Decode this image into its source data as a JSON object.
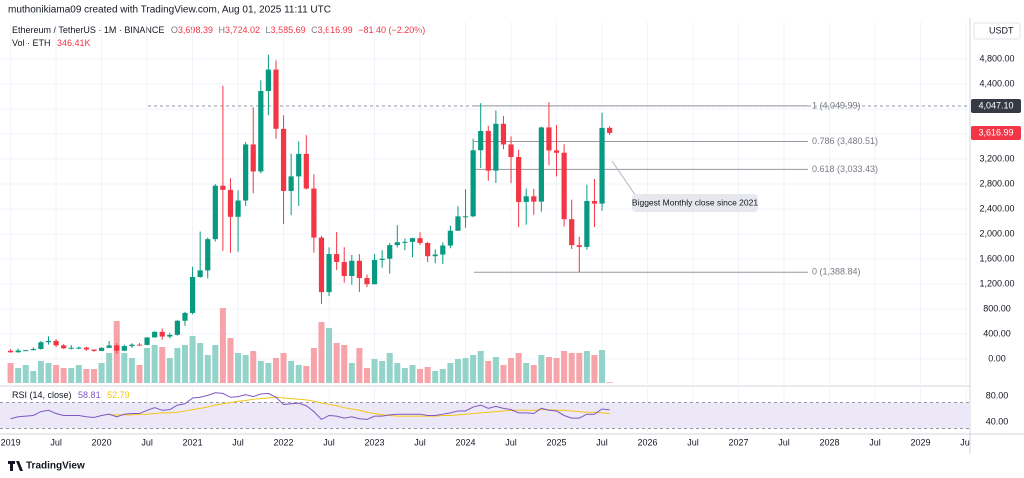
{
  "header": {
    "author_line": "muthonikiama09 created with TradingView.com, Aug 01, 2025 11:11 UTC",
    "symbol": "Ethereum / TetherUS · 1M · BINANCE",
    "ohlc_letters": [
      "O",
      "H",
      "L",
      "C"
    ],
    "ohlc_values": [
      "3,698.39",
      "3,724.02",
      "3,585.69",
      "3,616.99"
    ],
    "change": "−81.40 (−2.20%)",
    "volume_title": "Vol · ETH",
    "volume_value": "346.41K",
    "currency": "USDT",
    "brand": "TradingView"
  },
  "chart_data": {
    "type": "candlestick",
    "up_color": "#089981",
    "down_color": "#f23645",
    "volume_up_color": "#93d3ca",
    "volume_down_color": "#f6a3a9",
    "candles": {
      "x": [
        "2019-01",
        "2019-02",
        "2019-03",
        "2019-04",
        "2019-05",
        "2019-06",
        "2019-07",
        "2019-08",
        "2019-09",
        "2019-10",
        "2019-11",
        "2019-12",
        "2020-01",
        "2020-02",
        "2020-03",
        "2020-04",
        "2020-05",
        "2020-06",
        "2020-07",
        "2020-08",
        "2020-09",
        "2020-10",
        "2020-11",
        "2020-12",
        "2021-01",
        "2021-02",
        "2021-03",
        "2021-04",
        "2021-05",
        "2021-06",
        "2021-07",
        "2021-08",
        "2021-09",
        "2021-10",
        "2021-11",
        "2021-12",
        "2022-01",
        "2022-02",
        "2022-03",
        "2022-04",
        "2022-05",
        "2022-06",
        "2022-07",
        "2022-08",
        "2022-09",
        "2022-10",
        "2022-11",
        "2022-12",
        "2023-01",
        "2023-02",
        "2023-03",
        "2023-04",
        "2023-05",
        "2023-06",
        "2023-07",
        "2023-08",
        "2023-09",
        "2023-10",
        "2023-11",
        "2023-12",
        "2024-01",
        "2024-02",
        "2024-03",
        "2024-04",
        "2024-05",
        "2024-06",
        "2024-07",
        "2024-08",
        "2024-09",
        "2024-10",
        "2024-11",
        "2024-12",
        "2025-01",
        "2025-02",
        "2025-03",
        "2025-04",
        "2025-05",
        "2025-06",
        "2025-07",
        "2025-08"
      ],
      "open": [
        131,
        107,
        136,
        141,
        160,
        268,
        290,
        218,
        172,
        180,
        182,
        151,
        129,
        179,
        217,
        133,
        206,
        230,
        225,
        345,
        434,
        359,
        386,
        612,
        737,
        1312,
        1418,
        1918,
        2773,
        2706,
        2275,
        2536,
        3433,
        3001,
        4288,
        4631,
        3683,
        2688,
        2922,
        3282,
        2727,
        1942,
        1070,
        1679,
        1553,
        1328,
        1572,
        1295,
        1196,
        1585,
        1605,
        1822,
        1869,
        1874,
        1934,
        1856,
        1645,
        1671,
        1815,
        2052,
        2282,
        2283,
        3340,
        3648,
        3014,
        3763,
        3433,
        3232,
        2513,
        2603,
        2518,
        3705,
        3337,
        3300,
        2237,
        1822,
        1794,
        2528,
        2486,
        3698.39
      ],
      "high": [
        160,
        165,
        146,
        185,
        290,
        362,
        320,
        239,
        224,
        199,
        195,
        153,
        185,
        288,
        253,
        227,
        250,
        254,
        349,
        446,
        488,
        418,
        622,
        755,
        1475,
        2040,
        1943,
        2798,
        4372,
        2892,
        2700,
        3472,
        4027,
        4460,
        4868,
        4778,
        3899,
        3285,
        3482,
        3580,
        2955,
        1972,
        1787,
        2030,
        1789,
        1664,
        1678,
        1352,
        1679,
        1742,
        1857,
        2142,
        1928,
        1940,
        2029,
        1874,
        1754,
        1865,
        2133,
        2445,
        2717,
        3522,
        4093,
        3730,
        3977,
        3887,
        3563,
        3350,
        2728,
        2722,
        3720,
        4109,
        3745,
        3437,
        2550,
        1957,
        2788,
        2880,
        3941,
        3724.02
      ],
      "low": [
        102,
        102,
        130,
        138,
        150,
        230,
        190,
        160,
        153,
        156,
        131,
        116,
        126,
        177,
        86,
        128,
        177,
        215,
        220,
        344,
        308,
        332,
        373,
        532,
        715,
        1300,
        1291,
        1880,
        1730,
        1700,
        1718,
        2450,
        2652,
        2971,
        3900,
        3524,
        2159,
        2300,
        2450,
        2711,
        1703,
        880,
        1006,
        1422,
        1220,
        1190,
        1073,
        1150,
        1193,
        1461,
        1368,
        1785,
        1740,
        1626,
        1821,
        1550,
        1531,
        1521,
        1772,
        2049,
        2100,
        2268,
        3056,
        2853,
        2817,
        3355,
        2812,
        2111,
        2150,
        2308,
        2357,
        3100,
        2920,
        2120,
        1760,
        1385,
        1750,
        2111,
        2373,
        3585.69
      ],
      "close": [
        107,
        136,
        141,
        160,
        268,
        290,
        218,
        172,
        180,
        182,
        151,
        129,
        179,
        217,
        133,
        206,
        230,
        225,
        345,
        434,
        359,
        386,
        612,
        737,
        1312,
        1418,
        1918,
        2773,
        2706,
        2275,
        2536,
        3433,
        3001,
        4288,
        4631,
        3683,
        2688,
        2922,
        3282,
        2727,
        1942,
        1070,
        1679,
        1553,
        1328,
        1572,
        1295,
        1196,
        1585,
        1605,
        1822,
        1869,
        1874,
        1934,
        1856,
        1645,
        1671,
        1815,
        2052,
        2282,
        2283,
        3340,
        3648,
        3014,
        3763,
        3433,
        3232,
        2513,
        2603,
        2518,
        3705,
        3337,
        3300,
        2237,
        1822,
        1794,
        2528,
        2486,
        3698.39,
        3616.99
      ],
      "volume": [
        8000000,
        6000000,
        7200000,
        4800000,
        8800000,
        8000000,
        7200000,
        6000000,
        6000000,
        7200000,
        5600000,
        5600000,
        8000000,
        12000000,
        24800000,
        12000000,
        10000000,
        7200000,
        14000000,
        15200000,
        14400000,
        10000000,
        14000000,
        15200000,
        18800000,
        16000000,
        11200000,
        15200000,
        30000000,
        18000000,
        12000000,
        11200000,
        12800000,
        8800000,
        8000000,
        10000000,
        12000000,
        8800000,
        7200000,
        6800000,
        14000000,
        24400000,
        22000000,
        16000000,
        15200000,
        8000000,
        14000000,
        6000000,
        9600000,
        8800000,
        12000000,
        8000000,
        6000000,
        7200000,
        5600000,
        6400000,
        4800000,
        5600000,
        8000000,
        9600000,
        10000000,
        11200000,
        12800000,
        8800000,
        10400000,
        7200000,
        10000000,
        12000000,
        8000000,
        7200000,
        11200000,
        10400000,
        10000000,
        12800000,
        12000000,
        12000000,
        12800000,
        11200000,
        13200000,
        346410
      ]
    },
    "xlim": [
      "2018-12",
      "2029-07"
    ],
    "xticks": [
      {
        "value": "2019-01",
        "label": "2019"
      },
      {
        "value": "2019-07",
        "label": "Jul"
      },
      {
        "value": "2020-01",
        "label": "2020"
      },
      {
        "value": "2020-07",
        "label": "Jul"
      },
      {
        "value": "2021-01",
        "label": "2021"
      },
      {
        "value": "2021-07",
        "label": "Jul"
      },
      {
        "value": "2022-01",
        "label": "2022"
      },
      {
        "value": "2022-07",
        "label": "Jul"
      },
      {
        "value": "2023-01",
        "label": "2023"
      },
      {
        "value": "2023-07",
        "label": "Jul"
      },
      {
        "value": "2024-01",
        "label": "2024"
      },
      {
        "value": "2024-07",
        "label": "Jul"
      },
      {
        "value": "2025-01",
        "label": "2025"
      },
      {
        "value": "2025-07",
        "label": "Jul"
      },
      {
        "value": "2026-01",
        "label": "2026"
      },
      {
        "value": "2026-07",
        "label": "Jul"
      },
      {
        "value": "2027-01",
        "label": "2027"
      },
      {
        "value": "2027-07",
        "label": "Jul"
      },
      {
        "value": "2028-01",
        "label": "2028"
      },
      {
        "value": "2028-07",
        "label": "Jul"
      },
      {
        "value": "2029-01",
        "label": "2029"
      },
      {
        "value": "2029-07",
        "label": "Jul"
      }
    ],
    "ylim": [
      -416,
      5392
    ],
    "yticks": [
      {
        "value": 4800,
        "label": "4,800.00"
      },
      {
        "value": 4400,
        "label": "4,400.00"
      },
      {
        "value": 4000,
        "label": "4,000.00"
      },
      {
        "value": 3600,
        "label": "3,600.00"
      },
      {
        "value": 3200,
        "label": "3,200.00"
      },
      {
        "value": 2800,
        "label": "2,800.00"
      },
      {
        "value": 2400,
        "label": "2,400.00"
      },
      {
        "value": 2000,
        "label": "2,000.00"
      },
      {
        "value": 1600,
        "label": "1,600.00"
      },
      {
        "value": 1200,
        "label": "1,200.00"
      },
      {
        "value": 800,
        "label": "800.00"
      },
      {
        "value": 400,
        "label": "400.00"
      },
      {
        "value": 0,
        "label": "0.00"
      }
    ],
    "grid": true,
    "fib_levels": [
      {
        "value": 4049.99,
        "label": "1 (4,049.99)"
      },
      {
        "value": 3480.51,
        "label": "0.786 (3,480.51)"
      },
      {
        "value": 3033.43,
        "label": "0.618 (3,033.43)"
      },
      {
        "value": 1388.84,
        "label": "0 (1,388.84)"
      }
    ],
    "high_marker": {
      "value": 4047.1,
      "label": "4,047.10"
    },
    "last_price": {
      "value": 3616.99,
      "label": "3,616.99"
    },
    "annotation": "Biggest Monthly close since 2021",
    "rsi": {
      "label": "RSI (14, close)",
      "value_label": "58.81",
      "ma_label": "52.79",
      "color": "#7e57c2",
      "ma_color": "#f5c518",
      "band_color": "#ede8f7",
      "ylim": [
        24.6,
        92.3
      ],
      "yticks": [
        {
          "value": 80,
          "label": "80.00"
        },
        {
          "value": 40,
          "label": "40.00"
        }
      ],
      "bands": [
        70,
        30
      ],
      "values": [
        45,
        48,
        49,
        50,
        56,
        58,
        53,
        50,
        50,
        50,
        48,
        47,
        50,
        52,
        48,
        52,
        53,
        53,
        58,
        62,
        58,
        59,
        66,
        68,
        77,
        78,
        81,
        85,
        84,
        78,
        79,
        82,
        79,
        83,
        84,
        78,
        67,
        68,
        69,
        65,
        56,
        44,
        50,
        49,
        46,
        48,
        45,
        44,
        49,
        49,
        51,
        52,
        52,
        52,
        52,
        50,
        50,
        52,
        54,
        57,
        57,
        63,
        66,
        61,
        64,
        61,
        59,
        54,
        54,
        53,
        61,
        58,
        57,
        50,
        46,
        46,
        52,
        52,
        60,
        58.81
      ],
      "ma": [
        null,
        null,
        null,
        null,
        null,
        null,
        null,
        null,
        null,
        null,
        null,
        null,
        null,
        51,
        51,
        51,
        51,
        52,
        52,
        53,
        54,
        54,
        55,
        57,
        59,
        61,
        63,
        66,
        68,
        70,
        72,
        73,
        75,
        76,
        77,
        78,
        77,
        76,
        75,
        74,
        72,
        69,
        67,
        65,
        62,
        60,
        58,
        55,
        53,
        51,
        50,
        49,
        49,
        49,
        49,
        49,
        49,
        50,
        50,
        51,
        52,
        53,
        54,
        55,
        56,
        57,
        58,
        58,
        58,
        58,
        59,
        59,
        58,
        58,
        57,
        56,
        55,
        55,
        54,
        52.79
      ]
    }
  }
}
